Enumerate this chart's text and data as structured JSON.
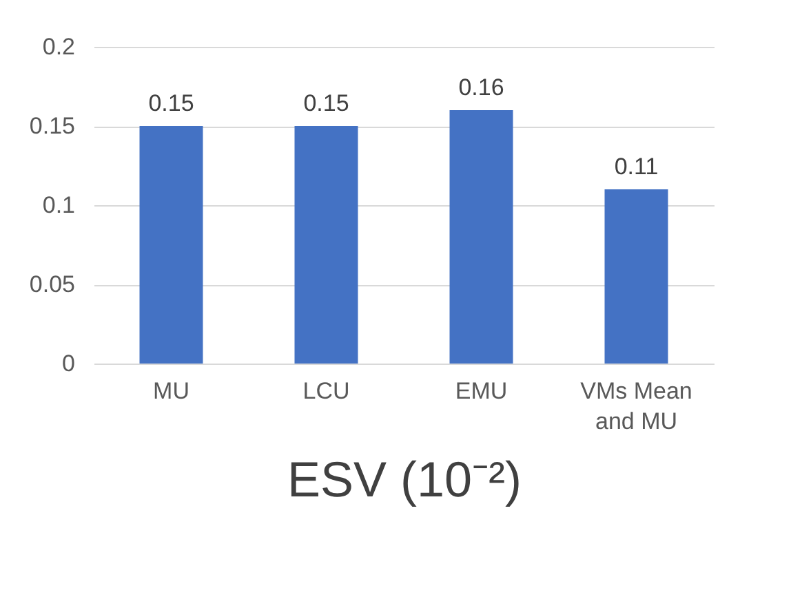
{
  "chart_data": {
    "type": "bar",
    "xlabel": "ESV (10⁻²)",
    "categories": [
      "MU",
      "LCU",
      "EMU",
      "VMs Mean and MU"
    ],
    "values": [
      0.15,
      0.15,
      0.16,
      0.11
    ],
    "color": "#4472c4",
    "ylim": [
      0,
      0.2
    ],
    "yticks": [
      0,
      0.05,
      0.1,
      0.15,
      0.2
    ],
    "grid": "y",
    "data_labels": true
  }
}
